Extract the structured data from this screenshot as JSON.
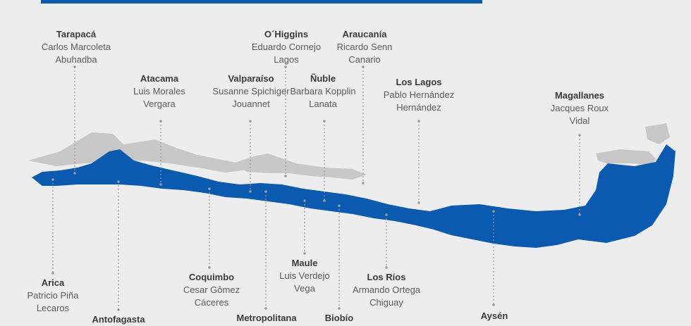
{
  "colors": {
    "background": "#ededee",
    "chile": "#0a5bb0",
    "neighbors": "#c8c8c8",
    "leader": "#9a9a9a",
    "top_bar": "#0a5bb0"
  },
  "regions": [
    {
      "name": "Arica",
      "person_line1": "Patricio Piña",
      "person_line2": "Lecaros"
    },
    {
      "name": "Tarapacá",
      "person_line1": "Carlos Marcoleta",
      "person_line2": "Abuhadba"
    },
    {
      "name": "Antofagasta",
      "person_line1": "",
      "person_line2": ""
    },
    {
      "name": "Atacama",
      "person_line1": "Luis Morales",
      "person_line2": "Vergara"
    },
    {
      "name": "Coquimbo",
      "person_line1": "Cesar Gômez",
      "person_line2": "Cáceres"
    },
    {
      "name": "Valparaíso",
      "person_line1": "Susanne Spichiger",
      "person_line2": "Jouannet"
    },
    {
      "name": "Metropolitana",
      "person_line1": "",
      "person_line2": ""
    },
    {
      "name": "O´Higgins",
      "person_line1": "Eduardo Cornejo",
      "person_line2": "Lagos"
    },
    {
      "name": "Maule",
      "person_line1": "Luis Verdejo",
      "person_line2": "Vega"
    },
    {
      "name": "Ñuble",
      "person_line1": "Barbara Kopplin",
      "person_line2": "Lanata"
    },
    {
      "name": "Biobío",
      "person_line1": "",
      "person_line2": ""
    },
    {
      "name": "Araucanía",
      "person_line1": "Ricardo Senn",
      "person_line2": "Canario"
    },
    {
      "name": "Los Ríos",
      "person_line1": "Armando Ortega",
      "person_line2": "Chiguay"
    },
    {
      "name": "Los Lagos",
      "person_line1": "Pablo Hernández",
      "person_line2": "Hernández"
    },
    {
      "name": "Aysén",
      "person_line1": "",
      "person_line2": ""
    },
    {
      "name": "Magallanes",
      "person_line1": "Jacques Roux",
      "person_line2": "Vidal"
    }
  ]
}
